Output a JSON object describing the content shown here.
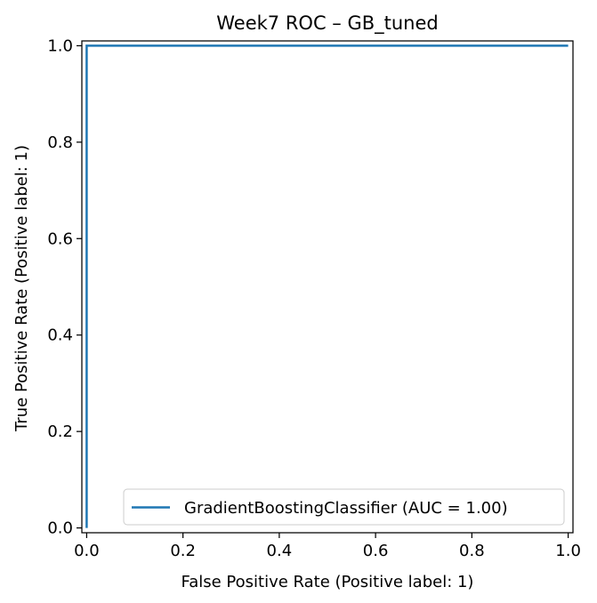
{
  "chart_data": {
    "type": "line",
    "title": "Week7 ROC – GB_tuned",
    "xlabel": "False Positive Rate (Positive label: 1)",
    "ylabel": "True Positive Rate (Positive label: 1)",
    "xlim": [
      0.0,
      1.0
    ],
    "ylim": [
      0.0,
      1.0
    ],
    "xticks": [
      0.0,
      0.2,
      0.4,
      0.6,
      0.8,
      1.0
    ],
    "xtick_labels": [
      "0.0",
      "0.2",
      "0.4",
      "0.6",
      "0.8",
      "1.0"
    ],
    "yticks": [
      0.0,
      0.2,
      0.4,
      0.6,
      0.8,
      1.0
    ],
    "ytick_labels": [
      "0.0",
      "0.2",
      "0.4",
      "0.6",
      "0.8",
      "1.0"
    ],
    "grid": false,
    "legend_position": "lower-right",
    "series": [
      {
        "name": "GradientBoostingClassifier (AUC = 1.00)",
        "color": "#1f77b4",
        "x": [
          0.0,
          0.0,
          1.0
        ],
        "y": [
          0.0,
          1.0,
          1.0
        ]
      }
    ]
  }
}
